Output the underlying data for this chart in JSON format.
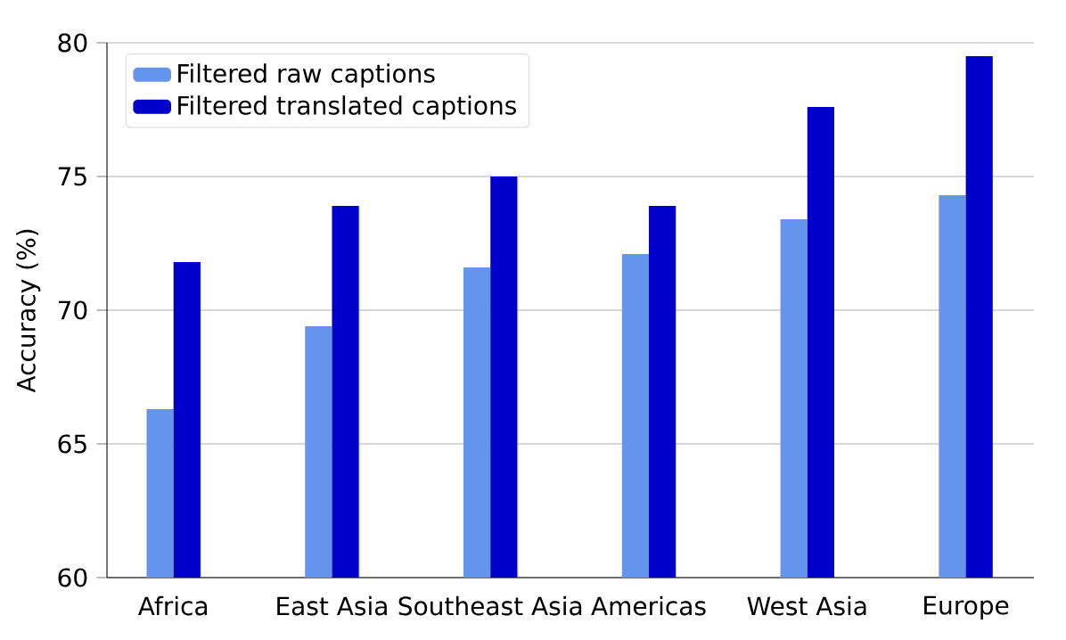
{
  "chart_data": {
    "type": "bar",
    "ylabel": "Accuracy (%)",
    "categories": [
      "Africa",
      "East Asia",
      "Southeast Asia",
      "Americas",
      "West Asia",
      "Europe"
    ],
    "series": [
      {
        "name": "Filtered raw captions",
        "color": "#6495ed",
        "values": [
          66.3,
          69.4,
          71.6,
          72.1,
          73.4,
          74.3
        ]
      },
      {
        "name": "Filtered translated captions",
        "color": "#0000cd",
        "values": [
          71.8,
          73.9,
          75.0,
          73.9,
          77.6,
          79.5
        ]
      }
    ],
    "ylim": [
      60,
      80
    ],
    "yticks": [
      60,
      65,
      70,
      75,
      80
    ],
    "grid": "y",
    "legend": "top left"
  }
}
